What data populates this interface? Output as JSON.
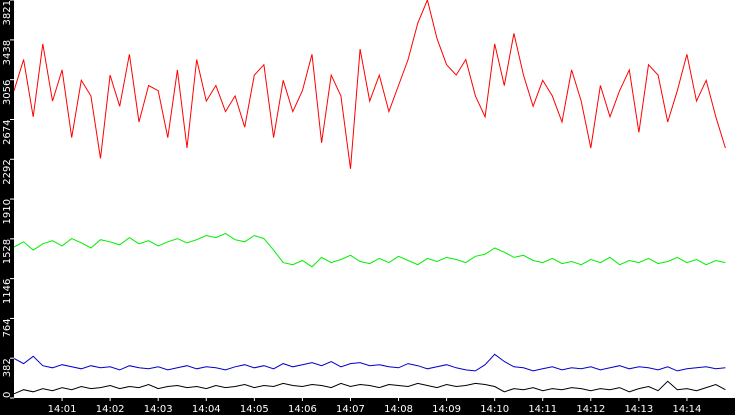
{
  "chart_data": {
    "type": "line",
    "categories": [
      null,
      null,
      null,
      null,
      null,
      "14:01",
      null,
      null,
      null,
      null,
      "14:02",
      null,
      null,
      null,
      null,
      "14:03",
      null,
      null,
      null,
      null,
      "14:04",
      null,
      null,
      null,
      null,
      "14:05",
      null,
      null,
      null,
      null,
      "14:06",
      null,
      null,
      null,
      null,
      "14:07",
      null,
      null,
      null,
      null,
      "14:08",
      null,
      null,
      null,
      null,
      "14:09",
      null,
      null,
      null,
      null,
      "14:10",
      null,
      null,
      null,
      null,
      "14:11",
      null,
      null,
      null,
      null,
      "14:12",
      null,
      null,
      null,
      null,
      "14:13",
      null,
      null,
      null,
      null,
      "14:14",
      null,
      null,
      null,
      null
    ],
    "series": [
      {
        "color": "#ff0000",
        "values": [
          2950,
          3250,
          2700,
          3400,
          2850,
          3150,
          2500,
          3050,
          2900,
          2300,
          3100,
          2800,
          3300,
          2650,
          3000,
          2950,
          2500,
          3150,
          2400,
          3250,
          2850,
          3000,
          2750,
          2900,
          2600,
          3100,
          3200,
          2500,
          3050,
          2750,
          2950,
          3300,
          2450,
          3100,
          2900,
          2200,
          3350,
          2850,
          3100,
          2750,
          3000,
          3250,
          3600,
          3821,
          3450,
          3200,
          3100,
          3250,
          2900,
          2700,
          3400,
          3000,
          3500,
          3100,
          2800,
          3050,
          2900,
          2650,
          3150,
          2850,
          2400,
          3000,
          2700,
          2950,
          3150,
          2550,
          3200,
          3100,
          2650,
          2950,
          3300,
          2850,
          3050,
          2700,
          2400
        ]
      },
      {
        "color": "#00ee00",
        "values": [
          1450,
          1500,
          1420,
          1480,
          1510,
          1460,
          1530,
          1490,
          1440,
          1520,
          1500,
          1470,
          1540,
          1480,
          1510,
          1460,
          1500,
          1530,
          1490,
          1520,
          1560,
          1540,
          1580,
          1520,
          1500,
          1560,
          1530,
          1420,
          1300,
          1280,
          1320,
          1260,
          1350,
          1300,
          1330,
          1370,
          1310,
          1290,
          1340,
          1300,
          1360,
          1320,
          1280,
          1340,
          1310,
          1350,
          1330,
          1300,
          1360,
          1380,
          1440,
          1400,
          1350,
          1370,
          1320,
          1300,
          1340,
          1290,
          1310,
          1280,
          1330,
          1300,
          1350,
          1280,
          1320,
          1300,
          1340,
          1290,
          1310,
          1350,
          1300,
          1330,
          1280,
          1320,
          1300
        ]
      },
      {
        "color": "#0000cc",
        "values": [
          380,
          330,
          400,
          310,
          290,
          320,
          300,
          280,
          310,
          290,
          300,
          270,
          310,
          290,
          280,
          300,
          270,
          290,
          310,
          280,
          300,
          290,
          270,
          300,
          320,
          290,
          310,
          280,
          330,
          300,
          320,
          340,
          310,
          350,
          300,
          330,
          340,
          310,
          320,
          300,
          290,
          330,
          310,
          280,
          300,
          320,
          290,
          270,
          260,
          320,
          420,
          350,
          300,
          290,
          260,
          280,
          300,
          270,
          290,
          280,
          300,
          270,
          290,
          310,
          280,
          300,
          290,
          270,
          300,
          260,
          280,
          290,
          300,
          280,
          290
        ]
      },
      {
        "color": "#000000",
        "values": [
          40,
          80,
          60,
          90,
          70,
          100,
          80,
          110,
          90,
          100,
          120,
          90,
          110,
          100,
          130,
          90,
          110,
          120,
          100,
          110,
          90,
          120,
          100,
          110,
          130,
          100,
          120,
          110,
          140,
          120,
          110,
          130,
          120,
          100,
          140,
          110,
          130,
          120,
          100,
          130,
          120,
          110,
          140,
          120,
          100,
          130,
          110,
          120,
          140,
          130,
          110,
          60,
          90,
          80,
          100,
          70,
          90,
          80,
          100,
          90,
          70,
          90,
          80,
          100,
          60,
          90,
          110,
          70,
          160,
          80,
          90,
          70,
          100,
          130,
          80
        ]
      }
    ],
    "ylim": [
      0,
      3821
    ],
    "yticks": [
      0,
      382,
      764,
      1146,
      1528,
      1910,
      2292,
      2674,
      3056,
      3438,
      3821
    ]
  }
}
